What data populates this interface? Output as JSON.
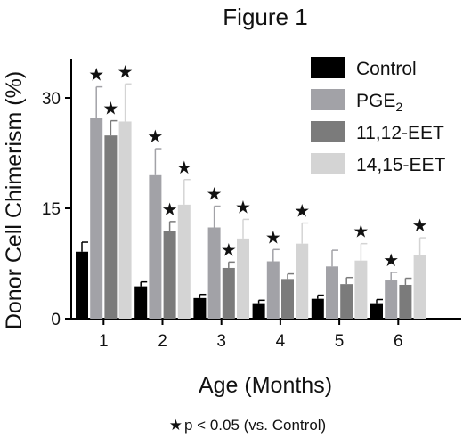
{
  "chart_data": {
    "type": "bar",
    "title": "Figure 1",
    "xlabel": "Age (Months)",
    "ylabel": "Donor Cell Chimerism (%)",
    "categories": [
      "1",
      "2",
      "3",
      "4",
      "5",
      "6"
    ],
    "yticks": [
      "0",
      "15",
      "30"
    ],
    "ylim": [
      0,
      35
    ],
    "grid": false,
    "legend_position": "top-right",
    "series": [
      {
        "name": "Control",
        "subscript": "",
        "color": "#000000",
        "values": [
          9.1,
          4.4,
          2.8,
          2.1,
          2.7,
          2.1
        ],
        "errors": [
          1.3,
          0.6,
          0.5,
          0.4,
          0.5,
          0.5
        ],
        "significant": [
          false,
          false,
          false,
          false,
          false,
          false
        ]
      },
      {
        "name": "PGE",
        "subscript": "2",
        "color": "#a2a2a7",
        "values": [
          27.3,
          19.5,
          12.4,
          7.8,
          7.1,
          5.2
        ],
        "errors": [
          4.2,
          3.6,
          2.9,
          1.6,
          2.2,
          1.1
        ],
        "significant": [
          true,
          true,
          true,
          true,
          false,
          true
        ]
      },
      {
        "name": "11,12-EET",
        "subscript": "",
        "color": "#7b7b7b",
        "values": [
          24.9,
          11.9,
          6.9,
          5.4,
          4.7,
          4.6
        ],
        "errors": [
          2.0,
          1.3,
          0.8,
          0.7,
          0.9,
          0.9
        ],
        "significant": [
          true,
          true,
          true,
          false,
          false,
          false
        ]
      },
      {
        "name": "14,15-EET",
        "subscript": "",
        "color": "#d4d4d4",
        "values": [
          26.8,
          15.5,
          10.9,
          10.2,
          7.9,
          8.6
        ],
        "errors": [
          5.1,
          3.4,
          2.6,
          2.8,
          2.3,
          2.4
        ],
        "significant": [
          true,
          true,
          true,
          true,
          true,
          true
        ]
      }
    ],
    "annotation": {
      "symbol": "★",
      "text": "p < 0.05 (vs. Control)"
    }
  }
}
